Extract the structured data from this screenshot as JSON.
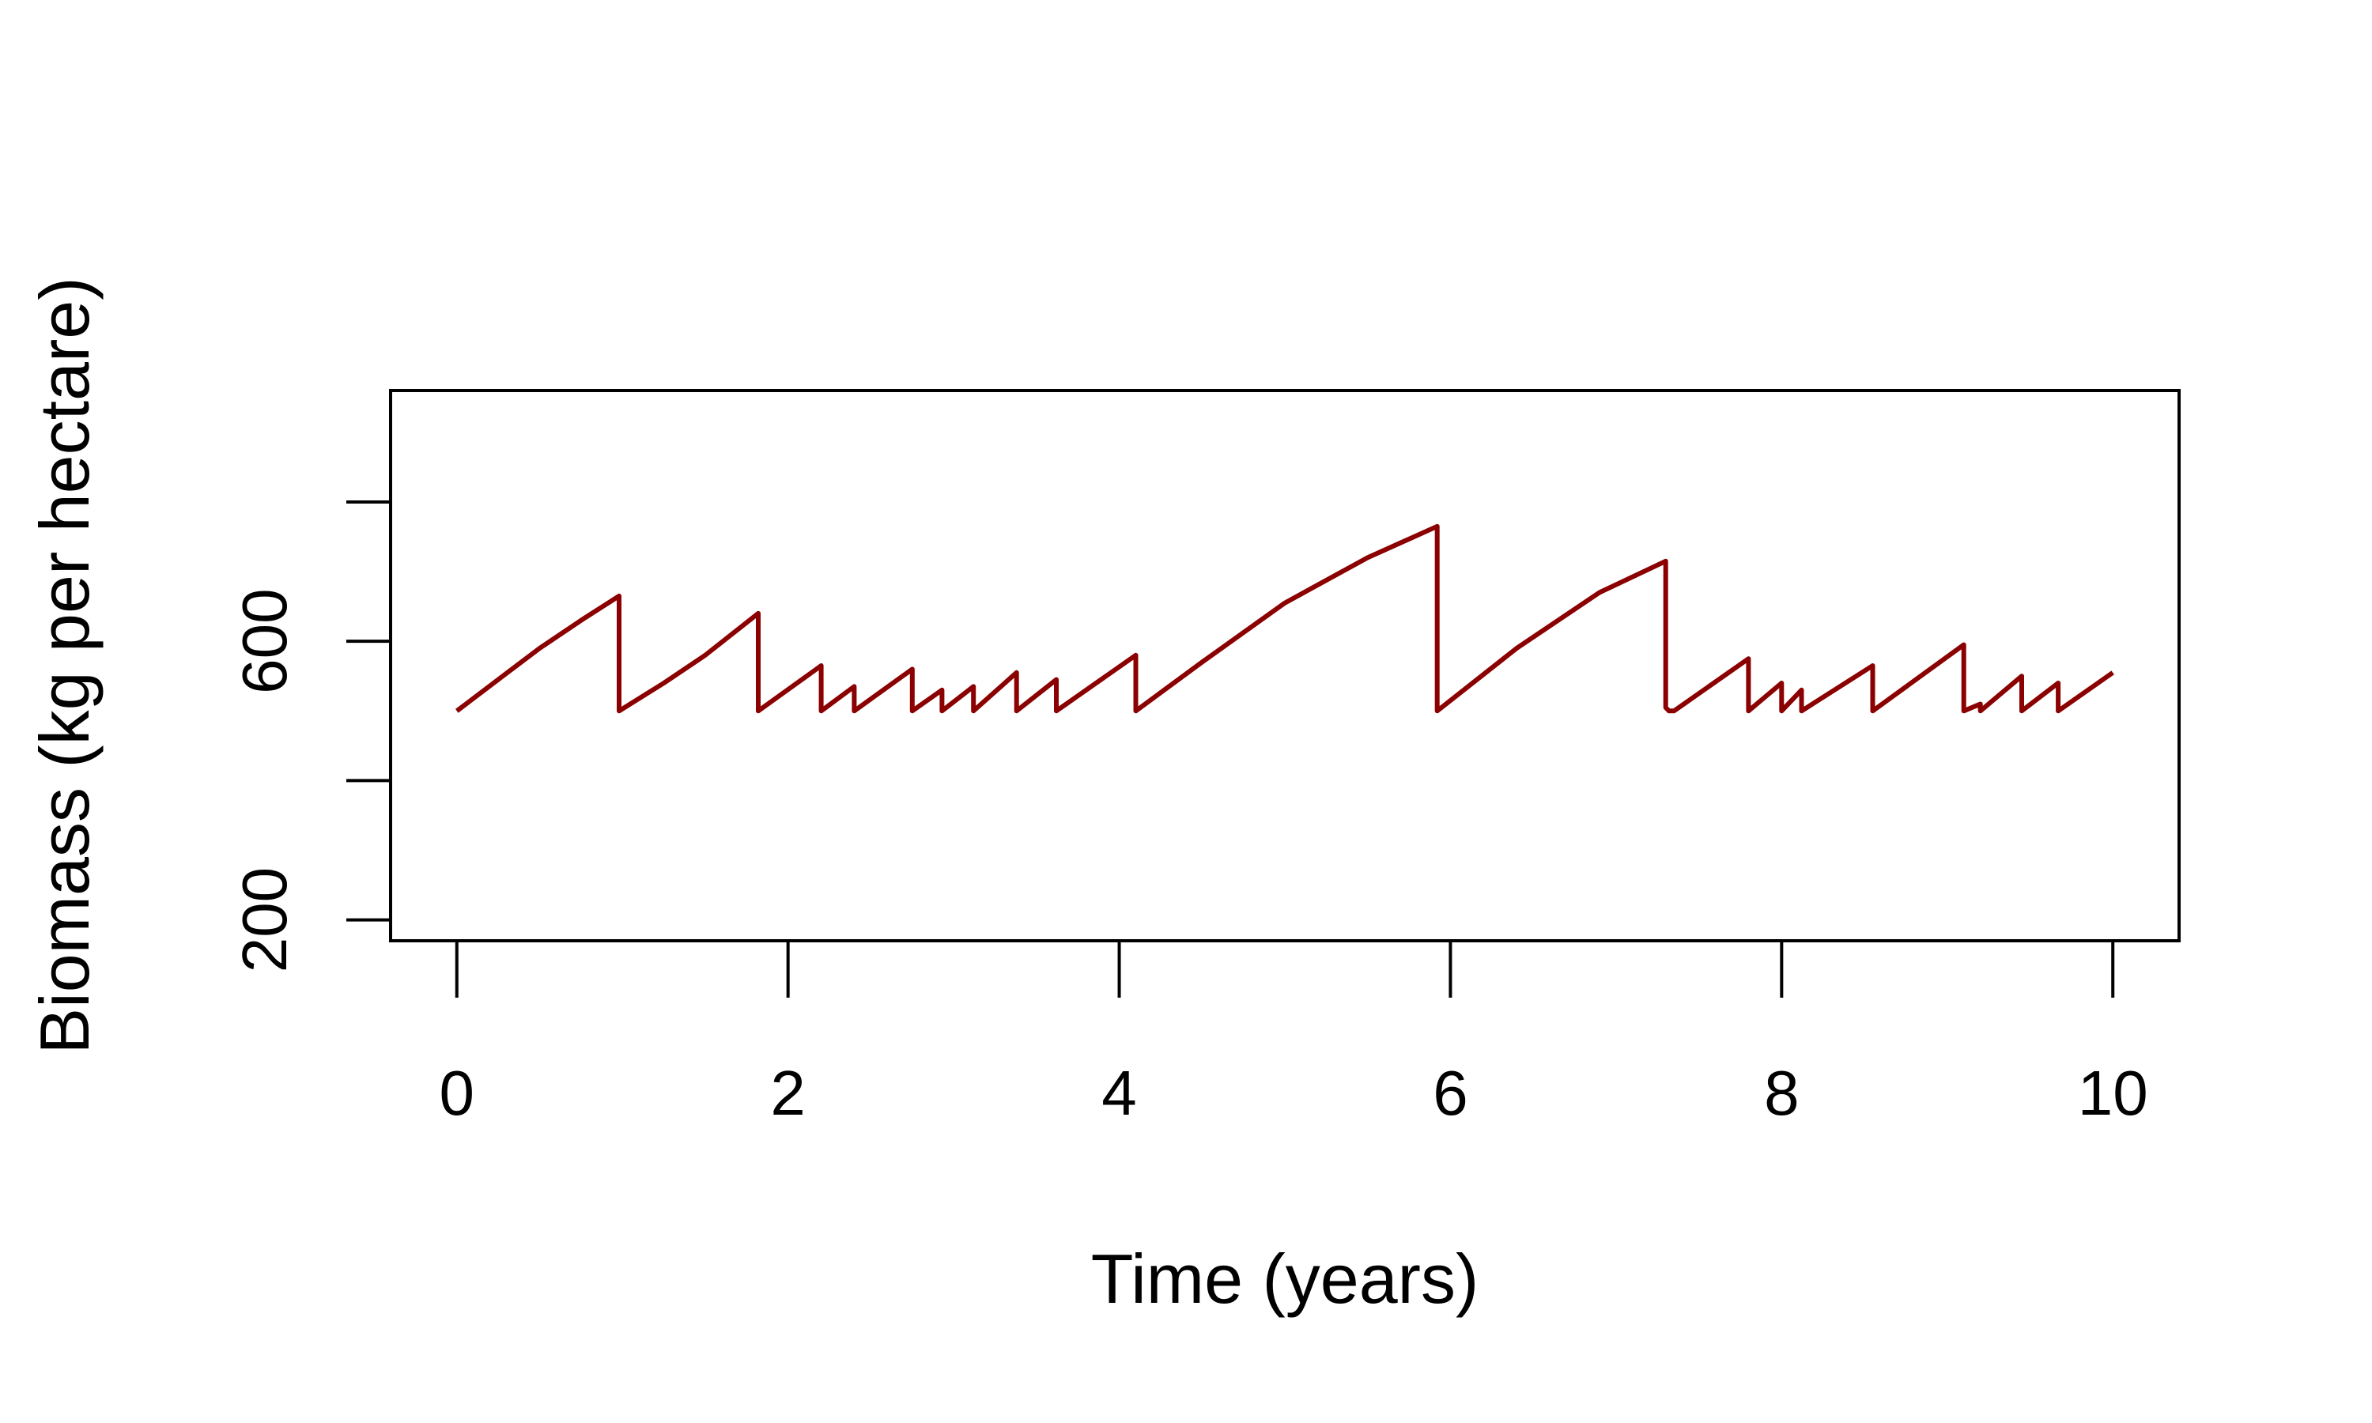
{
  "chart_data": {
    "type": "line",
    "title": "",
    "xlabel": "Time (years)",
    "ylabel": "Biomass (kg per hectare)",
    "xlim": [
      -0.4,
      10.4
    ],
    "ylim": [
      170,
      960
    ],
    "x_ticks": [
      0,
      2,
      4,
      6,
      8,
      10
    ],
    "y_ticks": [
      200,
      400,
      600,
      800
    ],
    "y_tick_labels": [
      "200",
      "",
      "600",
      ""
    ],
    "grid": false,
    "line_color": "#8b0000",
    "series": [
      {
        "x": [
          0,
          0.25,
          0.5,
          0.75,
          0.98,
          0.98,
          1.25,
          1.5,
          1.82,
          1.82,
          2.2,
          2.2,
          2.4,
          2.4,
          2.75,
          2.75,
          2.93,
          2.93,
          3.12,
          3.12,
          3.38,
          3.38,
          3.62,
          3.62,
          4.1,
          4.1,
          4.5,
          5.0,
          5.5,
          5.92,
          5.92,
          6.4,
          6.9,
          7.3,
          7.3,
          7.32,
          7.35,
          7.8,
          7.8,
          8.0,
          8.0,
          8.12,
          8.12,
          8.55,
          8.55,
          9.1,
          9.1,
          9.2,
          9.2,
          9.45,
          9.45,
          9.67,
          9.67,
          10.0
        ],
        "y": [
          500,
          545,
          590,
          630,
          665,
          500,
          540,
          580,
          640,
          500,
          565,
          500,
          535,
          500,
          560,
          500,
          530,
          500,
          535,
          500,
          555,
          500,
          545,
          500,
          580,
          500,
          570,
          655,
          720,
          765,
          500,
          590,
          670,
          715,
          505,
          500,
          500,
          575,
          500,
          540,
          500,
          530,
          500,
          565,
          500,
          595,
          500,
          510,
          500,
          550,
          500,
          540,
          500,
          555
        ]
      }
    ]
  }
}
